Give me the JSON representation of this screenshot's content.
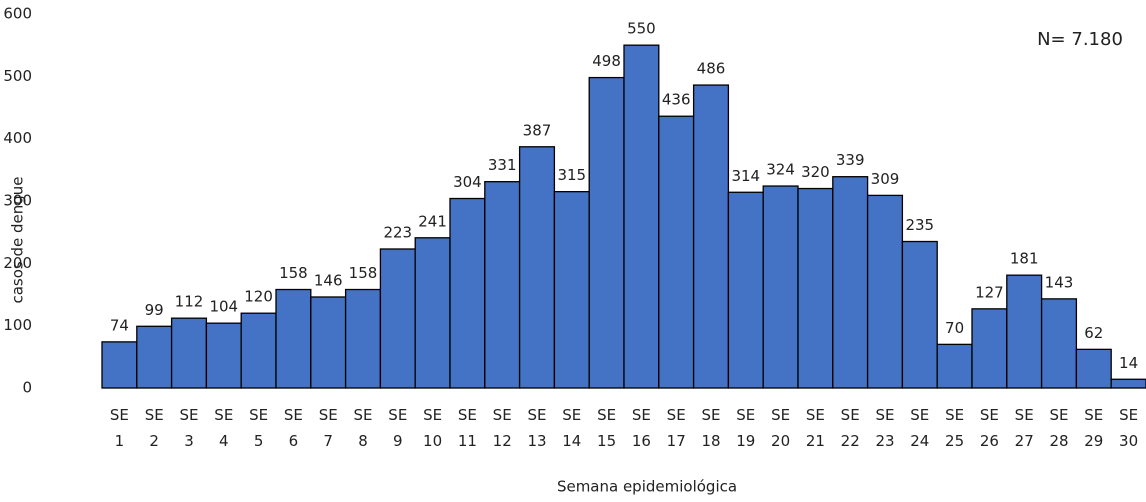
{
  "chart_data": {
    "type": "bar",
    "annotation": "N= 7.180",
    "x_label": "Semana epidemiológica",
    "y_label": "casos de dengue",
    "categories": [
      "SE 1",
      "SE 2",
      "SE 3",
      "SE 4",
      "SE 5",
      "SE 6",
      "SE 7",
      "SE 8",
      "SE 9",
      "SE 10",
      "SE 11",
      "SE 12",
      "SE 13",
      "SE 14",
      "SE 15",
      "SE 16",
      "SE 17",
      "SE 18",
      "SE 19",
      "SE 20",
      "SE 21",
      "SE 22",
      "SE 23",
      "SE 24",
      "SE 25",
      "SE 26",
      "SE 27",
      "SE 28",
      "SE 29",
      "SE 30"
    ],
    "values": [
      74,
      99,
      112,
      104,
      120,
      158,
      146,
      158,
      223,
      241,
      304,
      331,
      387,
      315,
      498,
      550,
      436,
      486,
      314,
      324,
      320,
      339,
      309,
      235,
      70,
      127,
      181,
      143,
      62,
      14
    ],
    "color": "#4472c4",
    "ylim": [
      0,
      600
    ],
    "yticks": [
      0,
      100,
      200,
      300,
      400,
      500,
      600
    ],
    "grid": false
  }
}
